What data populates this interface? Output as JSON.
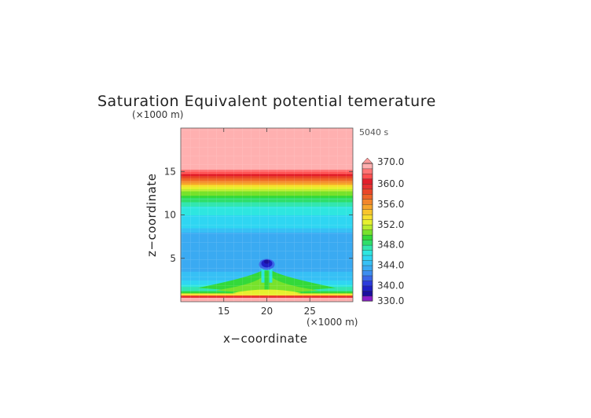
{
  "chart_data": {
    "type": "heatmap",
    "title": "Saturation Equivalent potential temerature",
    "time_label": "5040 s",
    "xlabel": "x−coordinate",
    "ylabel": "z−coordinate",
    "x_unit": "(×1000 m)",
    "y_unit": "(×1000 m)",
    "xlim": [
      10,
      30
    ],
    "ylim": [
      0,
      20
    ],
    "x_ticks": [
      15,
      20,
      25
    ],
    "y_ticks": [
      5,
      10,
      15
    ],
    "vertical_profile": [
      {
        "z": 0.3,
        "value": 368
      },
      {
        "z": 0.7,
        "value": 357
      },
      {
        "z": 1.2,
        "value": 348
      },
      {
        "z": 2.5,
        "value": 345
      },
      {
        "z": 4.0,
        "value": 343.5
      },
      {
        "z": 5.5,
        "value": 343
      },
      {
        "z": 7.5,
        "value": 343
      },
      {
        "z": 8.5,
        "value": 345
      },
      {
        "z": 10.0,
        "value": 346
      },
      {
        "z": 11.0,
        "value": 347
      },
      {
        "z": 12.0,
        "value": 349
      },
      {
        "z": 13.0,
        "value": 352
      },
      {
        "z": 14.0,
        "value": 357
      },
      {
        "z": 15.0,
        "value": 362
      },
      {
        "z": 16.0,
        "value": 370
      },
      {
        "z": 20.0,
        "value": 370
      }
    ],
    "colorbar": {
      "labels": [
        "370.0",
        "360.0",
        "356.0",
        "352.0",
        "348.0",
        "344.0",
        "340.0",
        "330.0"
      ],
      "levels": [
        330,
        338,
        339,
        340,
        341,
        342,
        343,
        344,
        345,
        346,
        347,
        348,
        349,
        350,
        351,
        352,
        353,
        354,
        355,
        356,
        357,
        358,
        359,
        360,
        361,
        362,
        364,
        370
      ],
      "colors": [
        "#8a1ecb",
        "#1b0f9e",
        "#1f1fc6",
        "#2c3cdc",
        "#3a66e8",
        "#3d8ef0",
        "#3aaaf2",
        "#37c0f5",
        "#2fd6f2",
        "#2ee6e0",
        "#33e6b0",
        "#2fde6a",
        "#33d93a",
        "#77e22c",
        "#b7ec2c",
        "#e6f02e",
        "#f6e02e",
        "#f8c52c",
        "#f6a52a",
        "#f2862a",
        "#ee6528",
        "#ea4628",
        "#e63030",
        "#e21e2a",
        "#ff5050",
        "#ff7575",
        "#ffb0b0"
      ],
      "top_arrow_color": "#ff9a9a",
      "bottom_arrow_color": "#8a1ecb"
    },
    "anomaly": {
      "center_x": 20,
      "features": [
        {
          "name": "dark-blue-cap",
          "z": 4.2,
          "value": 339
        },
        {
          "name": "green-plume",
          "z": 1.8,
          "value": 348
        },
        {
          "name": "surface-warm-band",
          "z": 0.3,
          "value": 368
        }
      ]
    }
  }
}
